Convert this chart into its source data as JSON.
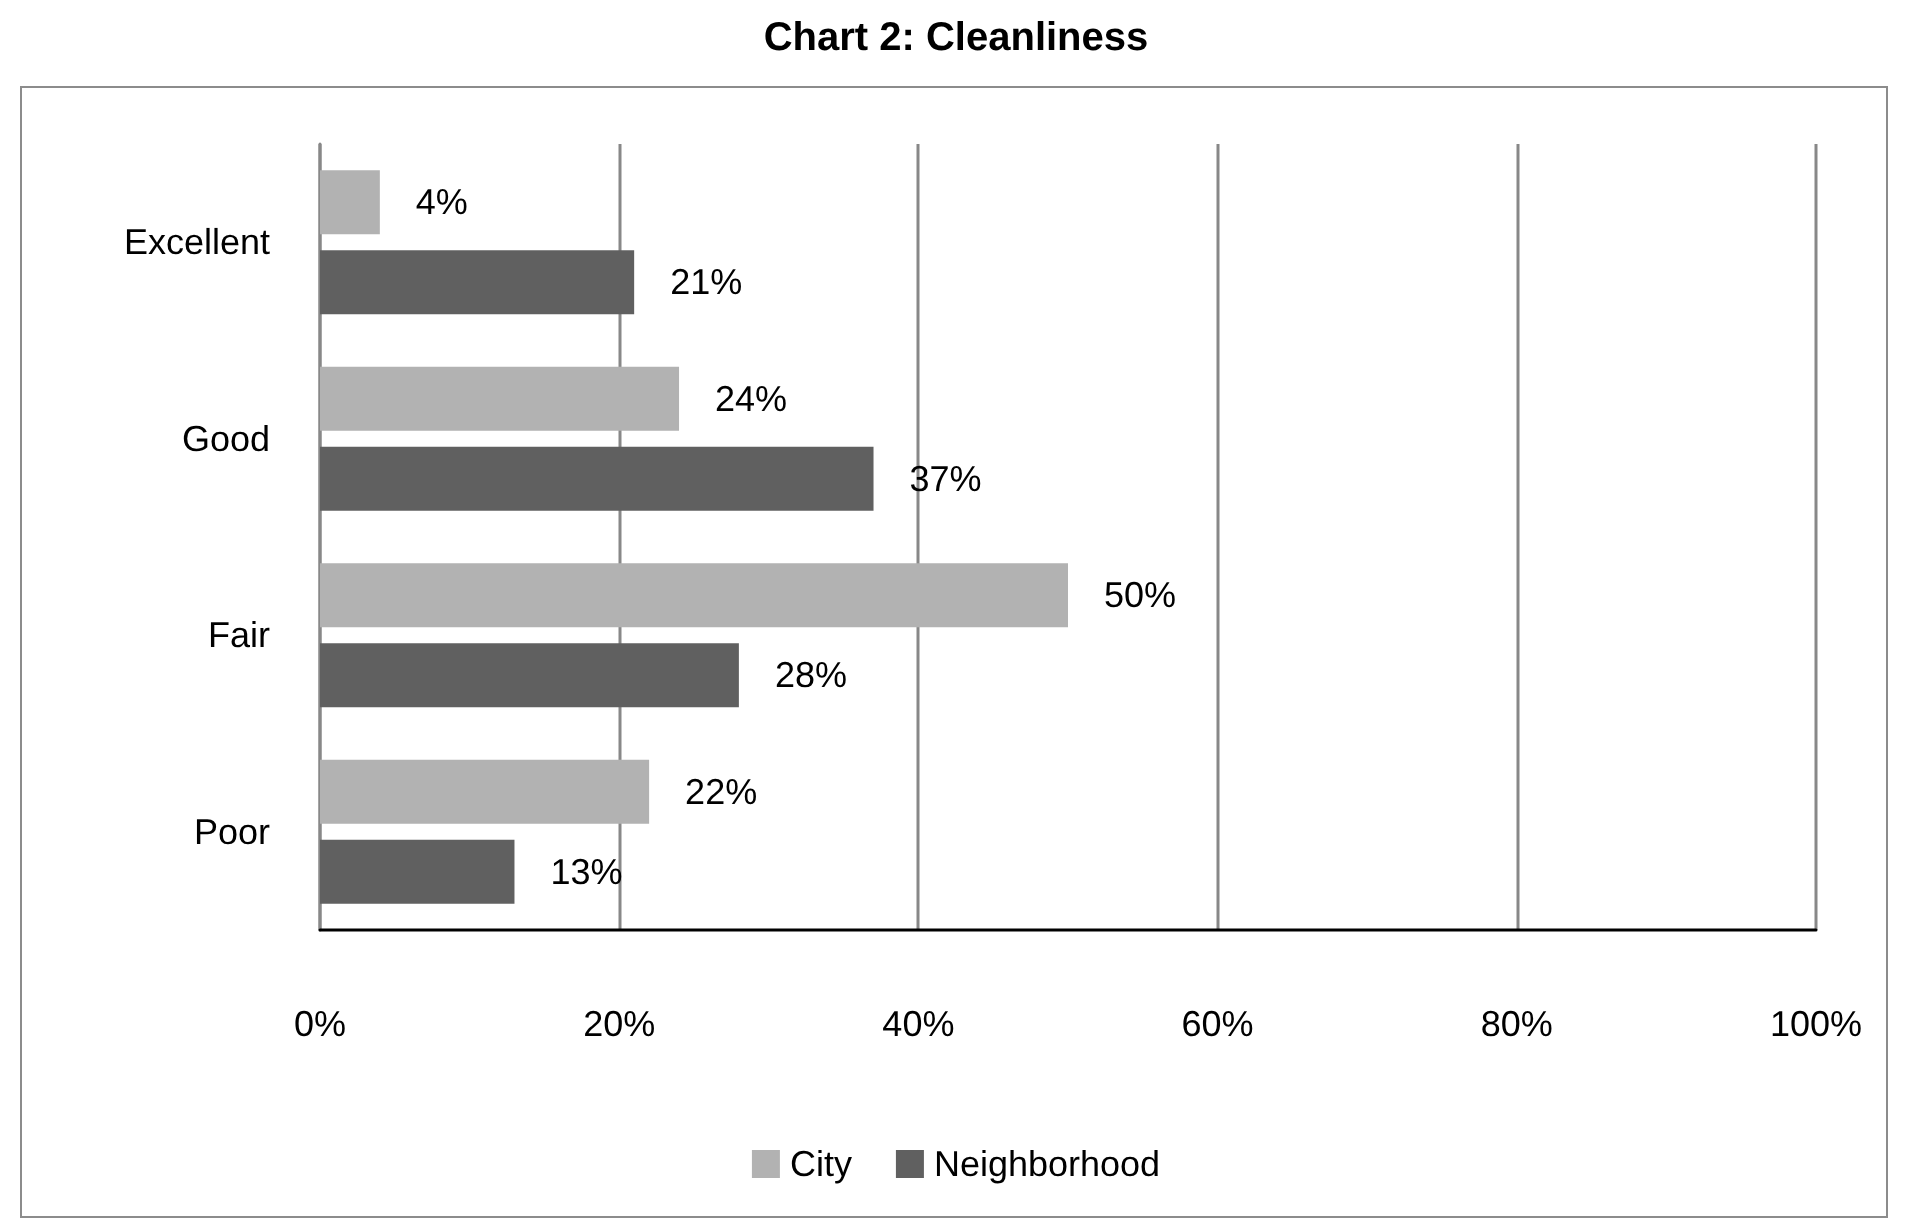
{
  "chart_data": {
    "type": "bar",
    "orientation": "horizontal",
    "title": "Chart 2: Cleanliness",
    "categories": [
      "Excellent",
      "Good",
      "Fair",
      "Poor"
    ],
    "series": [
      {
        "name": "City",
        "color": "#b2b2b2",
        "values": [
          4,
          24,
          50,
          22
        ],
        "value_labels": [
          "4%",
          "24%",
          "50%",
          "22%"
        ]
      },
      {
        "name": "Neighborhood",
        "color": "#606060",
        "values": [
          21,
          37,
          28,
          13
        ],
        "value_labels": [
          "21%",
          "37%",
          "28%",
          "13%"
        ]
      }
    ],
    "xlim": [
      0,
      100
    ],
    "xticks": [
      {
        "value": 0,
        "label": "0%"
      },
      {
        "value": 20,
        "label": "20%"
      },
      {
        "value": 40,
        "label": "40%"
      },
      {
        "value": 60,
        "label": "60%"
      },
      {
        "value": 80,
        "label": "80%"
      },
      {
        "value": 100,
        "label": "100%"
      }
    ],
    "grid": "x",
    "legend": "bottom"
  }
}
